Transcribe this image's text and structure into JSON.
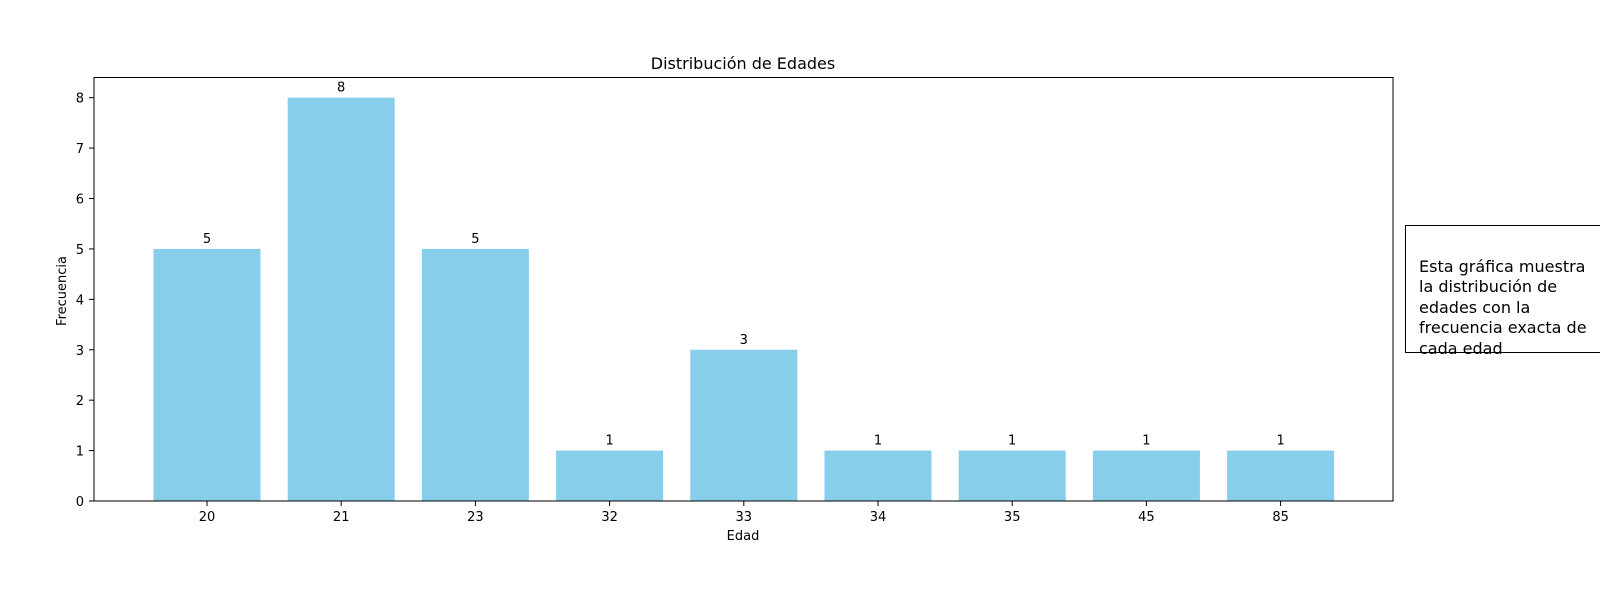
{
  "chart_data": {
    "type": "bar",
    "title": "Distribución de Edades",
    "xlabel": "Edad",
    "ylabel": "Frecuencia",
    "categories": [
      "20",
      "21",
      "23",
      "32",
      "33",
      "34",
      "35",
      "45",
      "85"
    ],
    "values": [
      5,
      8,
      5,
      1,
      3,
      1,
      1,
      1,
      1
    ],
    "data_labels": [
      "5",
      "8",
      "5",
      "1",
      "3",
      "1",
      "1",
      "1",
      "1"
    ],
    "ylim": [
      0,
      8.4
    ],
    "yticks": [
      0,
      1,
      2,
      3,
      4,
      5,
      6,
      7,
      8
    ],
    "grid": false,
    "bar_color": "#87CEEB"
  },
  "annotation": {
    "text": "Esta gráfica muestra\nla distribución de\nedades con la\nfrecuencia exacta de\ncada edad"
  }
}
